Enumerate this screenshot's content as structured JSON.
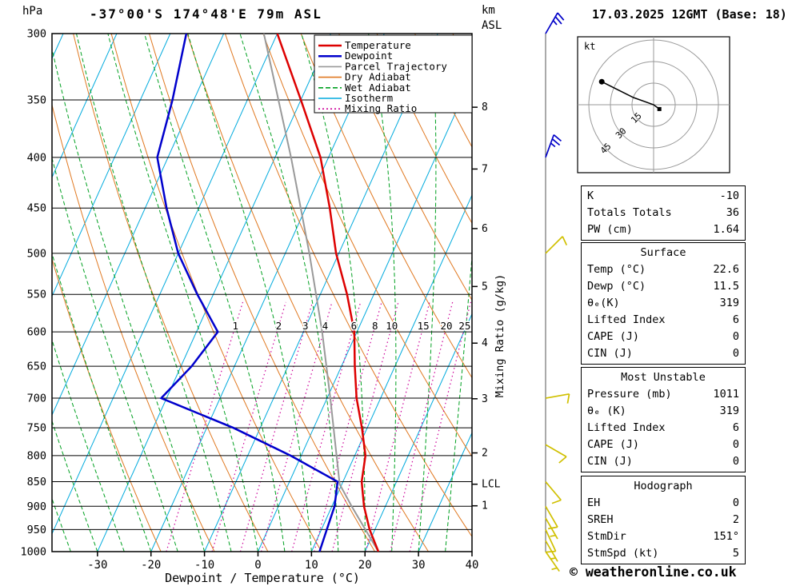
{
  "header": {
    "station": "-37°00'S 174°48'E 79m ASL",
    "datetime": "17.03.2025 12GMT (Base: 18)",
    "left_axis_unit": "hPa",
    "right_axis_unit_line1": "km",
    "right_axis_unit_line2": "ASL"
  },
  "legend": {
    "items": [
      {
        "label": "Temperature",
        "color": "#dd0000",
        "style": "solid",
        "width": 2.5
      },
      {
        "label": "Dewpoint",
        "color": "#0000cc",
        "style": "solid",
        "width": 2.5
      },
      {
        "label": "Parcel Trajectory",
        "color": "#999999",
        "style": "solid",
        "width": 2
      },
      {
        "label": "Dry Adiabat",
        "color": "#e07820",
        "style": "solid",
        "width": 1.2
      },
      {
        "label": "Wet Adiabat",
        "color": "#00a020",
        "style": "dashed",
        "width": 1.2
      },
      {
        "label": "Isotherm",
        "color": "#00aadd",
        "style": "solid",
        "width": 1.2
      },
      {
        "label": "Mixing Ratio",
        "color": "#cc0099",
        "style": "dotted",
        "width": 1.4
      }
    ]
  },
  "axes": {
    "pressure_ticks": [
      300,
      350,
      400,
      450,
      500,
      550,
      600,
      650,
      700,
      750,
      800,
      850,
      900,
      950,
      1000
    ],
    "temp_ticks": [
      -30,
      -20,
      -10,
      0,
      10,
      20,
      30,
      40
    ],
    "x_label": "Dewpoint / Temperature (°C)",
    "km_ticks": [
      {
        "km": 1,
        "p": 899
      },
      {
        "km": 2,
        "p": 795
      },
      {
        "km": 3,
        "p": 701
      },
      {
        "km": 4,
        "p": 616
      },
      {
        "km": 5,
        "p": 540
      },
      {
        "km": 6,
        "p": 472
      },
      {
        "km": 7,
        "p": 411
      },
      {
        "km": 8,
        "p": 356
      }
    ],
    "lcl": {
      "label": "LCL",
      "p": 855
    },
    "mixing_axis_label": "Mixing Ratio (g/kg)"
  },
  "chart_data": {
    "type": "skewt-log-p",
    "pressure_range_hpa": [
      300,
      1000
    ],
    "temp_axis_range_c": [
      -38.5,
      40
    ],
    "isotherm_step_c": 10,
    "sounding": {
      "pressure_hpa": [
        1000,
        950,
        900,
        850,
        800,
        750,
        700,
        650,
        600,
        550,
        500,
        450,
        400,
        350,
        300
      ],
      "temperature_c": [
        22.5,
        19.0,
        16.0,
        13.5,
        12.0,
        9.0,
        5.5,
        2.5,
        -0.5,
        -5.0,
        -10.5,
        -15.5,
        -21.5,
        -30.0,
        -40.0
      ],
      "dewpoint_c": [
        11.5,
        11.0,
        10.5,
        9.0,
        -2.0,
        -15.0,
        -31.0,
        -28.0,
        -26.0,
        -33.0,
        -40.0,
        -46.0,
        -52.0,
        -54.0,
        -57.0
      ]
    },
    "parcel_trajectory": {
      "pressure_hpa": [
        1000,
        900,
        855,
        800,
        700,
        600,
        500,
        400,
        300
      ],
      "temperature_c": [
        22.5,
        13.7,
        9.6,
        6.6,
        0.6,
        -6.5,
        -15.5,
        -27.0,
        -42.5
      ]
    },
    "mixing_ratio_lines_gkg": [
      1,
      2,
      3,
      4,
      6,
      8,
      10,
      15,
      20,
      25
    ],
    "lcl_pressure_hpa": 855,
    "wind_barbs": [
      {
        "p": 300,
        "speed_kt": 25,
        "dir_deg": 30,
        "color": "#0000c8"
      },
      {
        "p": 400,
        "speed_kt": 25,
        "dir_deg": 20,
        "color": "#0000c8"
      },
      {
        "p": 500,
        "speed_kt": 10,
        "dir_deg": 45,
        "color": "#d0c000"
      },
      {
        "p": 700,
        "speed_kt": 10,
        "dir_deg": 80,
        "color": "#d0c000"
      },
      {
        "p": 780,
        "speed_kt": 10,
        "dir_deg": 120,
        "color": "#d0c000"
      },
      {
        "p": 850,
        "speed_kt": 10,
        "dir_deg": 140,
        "color": "#d0c000"
      },
      {
        "p": 900,
        "speed_kt": 10,
        "dir_deg": 150,
        "color": "#d0c000"
      },
      {
        "p": 925,
        "speed_kt": 5,
        "dir_deg": 150,
        "color": "#d0c000"
      },
      {
        "p": 950,
        "speed_kt": 10,
        "dir_deg": 155,
        "color": "#d0c000"
      },
      {
        "p": 975,
        "speed_kt": 5,
        "dir_deg": 150,
        "color": "#d0c000"
      },
      {
        "p": 1000,
        "speed_kt": 5,
        "dir_deg": 145,
        "color": "#d0c000"
      }
    ],
    "hodograph": {
      "unit_label": "kt",
      "rings_kt": [
        15,
        30,
        45
      ],
      "trace_kt": [
        [
          -36,
          16
        ],
        [
          -14,
          5
        ],
        [
          0,
          0
        ],
        [
          4,
          -3
        ]
      ],
      "storm_marker_kt": [
        4,
        -3
      ]
    }
  },
  "stats": {
    "indices": {
      "rows": [
        {
          "label": "K",
          "value": "-10"
        },
        {
          "label": "Totals Totals",
          "value": "36"
        },
        {
          "label": "PW (cm)",
          "value": "1.64"
        }
      ]
    },
    "surface": {
      "title": "Surface",
      "rows": [
        {
          "label": "Temp (°C)",
          "value": "22.6"
        },
        {
          "label": "Dewp (°C)",
          "value": "11.5"
        },
        {
          "label": "θₑ(K)",
          "value": "319"
        },
        {
          "label": "Lifted Index",
          "value": "6"
        },
        {
          "label": "CAPE (J)",
          "value": "0"
        },
        {
          "label": "CIN (J)",
          "value": "0"
        }
      ]
    },
    "most_unstable": {
      "title": "Most Unstable",
      "rows": [
        {
          "label": "Pressure (mb)",
          "value": "1011"
        },
        {
          "label": "θₑ (K)",
          "value": "319"
        },
        {
          "label": "Lifted Index",
          "value": "6"
        },
        {
          "label": "CAPE (J)",
          "value": "0"
        },
        {
          "label": "CIN (J)",
          "value": "0"
        }
      ]
    },
    "hodograph_stats": {
      "title": "Hodograph",
      "rows": [
        {
          "label": "EH",
          "value": "0"
        },
        {
          "label": "SREH",
          "value": "2"
        },
        {
          "label": "StmDir",
          "value": "151°"
        },
        {
          "label": "StmSpd (kt)",
          "value": "5"
        }
      ]
    }
  },
  "footer": {
    "copyright": "© weatheronline.co.uk"
  }
}
